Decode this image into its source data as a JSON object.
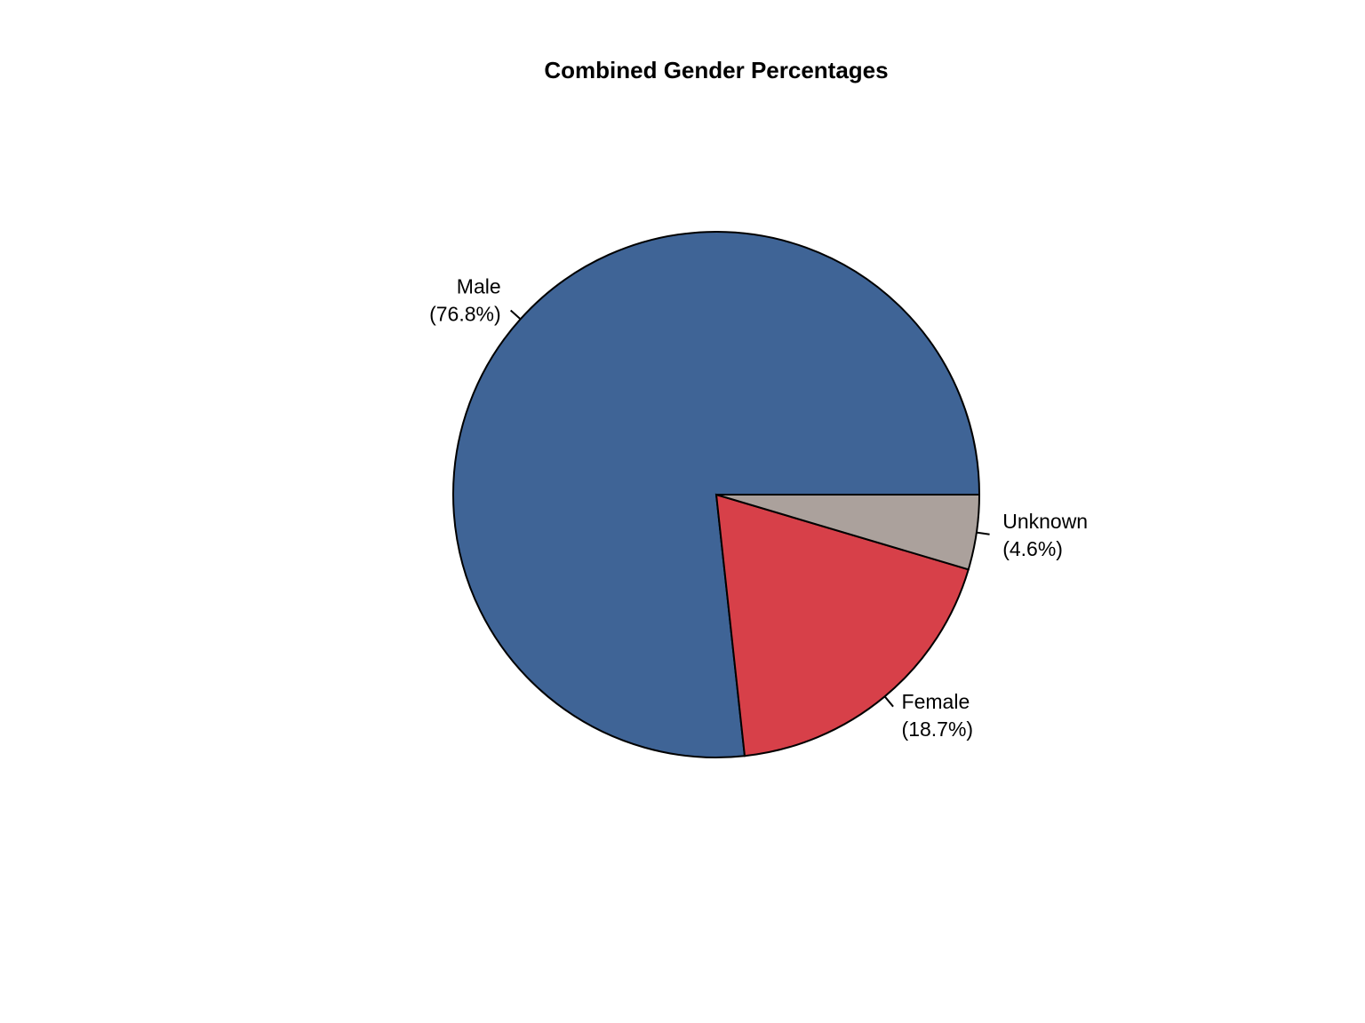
{
  "chart_data": {
    "type": "pie",
    "title": "Combined Gender Percentages",
    "categories": [
      "Male",
      "Female",
      "Unknown"
    ],
    "values": [
      76.8,
      18.7,
      4.6
    ],
    "value_labels": [
      "(76.8%)",
      "(18.7%)",
      "(4.6%)"
    ],
    "colors": [
      "#3f6496",
      "#d74049",
      "#aba19c"
    ]
  }
}
